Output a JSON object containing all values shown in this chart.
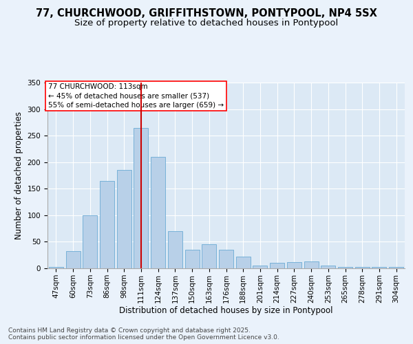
{
  "title_line1": "77, CHURCHWOOD, GRIFFITHSTOWN, PONTYPOOL, NP4 5SX",
  "title_line2": "Size of property relative to detached houses in Pontypool",
  "xlabel": "Distribution of detached houses by size in Pontypool",
  "ylabel": "Number of detached properties",
  "categories": [
    "47sqm",
    "60sqm",
    "73sqm",
    "86sqm",
    "98sqm",
    "111sqm",
    "124sqm",
    "137sqm",
    "150sqm",
    "163sqm",
    "176sqm",
    "188sqm",
    "201sqm",
    "214sqm",
    "227sqm",
    "240sqm",
    "253sqm",
    "265sqm",
    "278sqm",
    "291sqm",
    "304sqm"
  ],
  "values": [
    2,
    33,
    100,
    165,
    185,
    265,
    210,
    70,
    35,
    45,
    35,
    22,
    5,
    10,
    12,
    13,
    5,
    3,
    2,
    2,
    2
  ],
  "bar_color": "#b8d0e8",
  "bar_edge_color": "#6aaad4",
  "vline_x_index": 5,
  "vline_color": "#cc0000",
  "annotation_text": "77 CHURCHWOOD: 113sqm\n← 45% of detached houses are smaller (537)\n55% of semi-detached houses are larger (659) →",
  "ylim": [
    0,
    350
  ],
  "yticks": [
    0,
    50,
    100,
    150,
    200,
    250,
    300,
    350
  ],
  "background_color": "#eaf2fb",
  "plot_background": "#dce9f5",
  "footer_text": "Contains HM Land Registry data © Crown copyright and database right 2025.\nContains public sector information licensed under the Open Government Licence v3.0.",
  "title_fontsize": 10.5,
  "subtitle_fontsize": 9.5,
  "axis_label_fontsize": 8.5,
  "tick_fontsize": 7.5,
  "annotation_fontsize": 7.5,
  "footer_fontsize": 6.5
}
